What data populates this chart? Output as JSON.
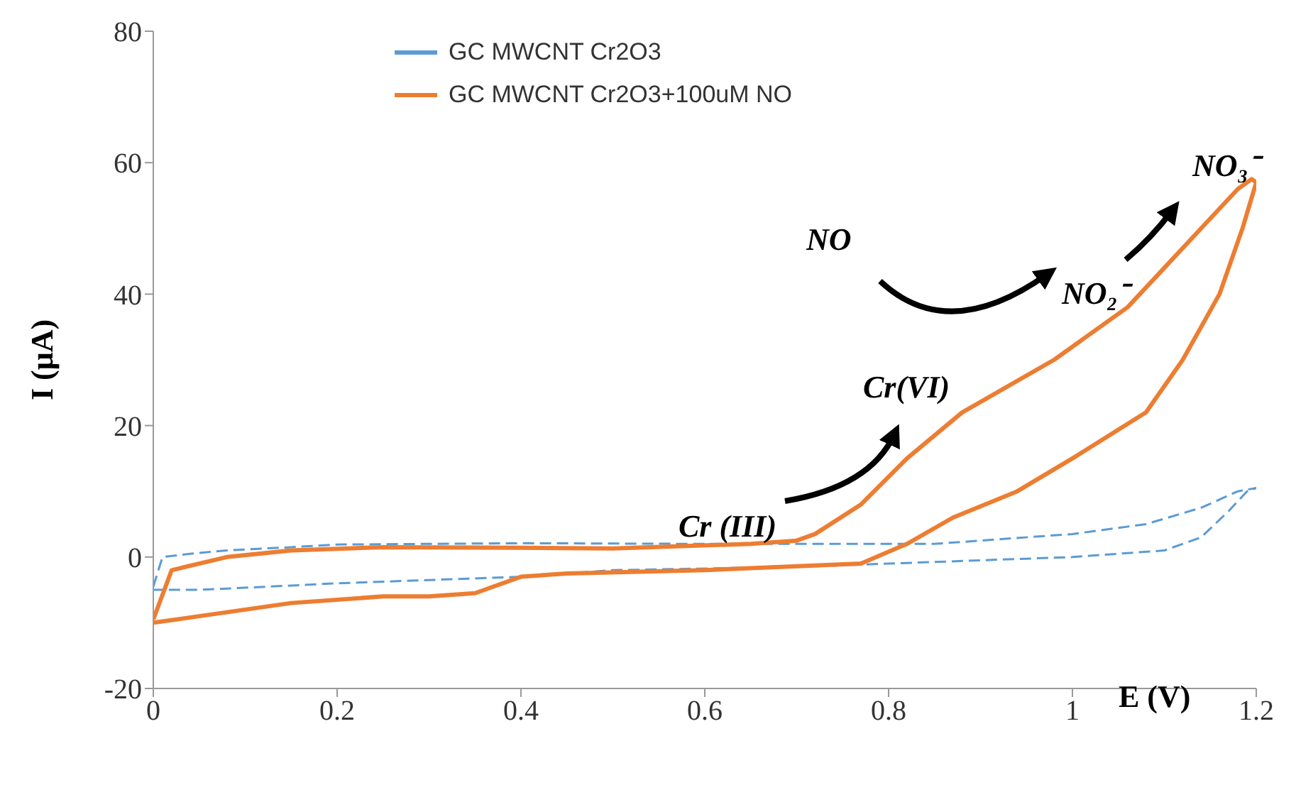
{
  "chart_data": {
    "type": "line",
    "xlabel": "E (V)",
    "ylabel": "I (μA)",
    "xlim": [
      0,
      1.2
    ],
    "xticks": [
      0,
      0.2,
      0.4,
      0.6,
      0.8,
      1,
      1.2
    ],
    "ylim": [
      -20,
      80
    ],
    "yticks": [
      -20,
      0,
      20,
      40,
      60,
      80
    ],
    "grid": false,
    "legend": "top left",
    "marker": "none",
    "series": [
      {
        "name": "GC MWCNT Cr2O3",
        "color": "#5b9bd5",
        "line_style": "dashed",
        "x": [
          0,
          0.01,
          0.04,
          0.08,
          0.15,
          0.2,
          0.4,
          0.6,
          0.7,
          0.85,
          1.0,
          1.08,
          1.14,
          1.18,
          1.2,
          1.19,
          1.17,
          1.14,
          1.1,
          1.0,
          0.9,
          0.7,
          0.5,
          0.4,
          0.3,
          0.2,
          0.05,
          0
        ],
        "values": [
          -4.5,
          0,
          0.5,
          1,
          1.5,
          1.9,
          2.1,
          2,
          2,
          2,
          3.5,
          5,
          7.5,
          10,
          10.5,
          10,
          7,
          3,
          1,
          0,
          -0.5,
          -1.5,
          -2,
          -3,
          -3.5,
          -4,
          -5,
          -5
        ]
      },
      {
        "name": "GC MWCNT Cr2O3+100uM NO",
        "color": "#ed7d31",
        "line_style": "solid",
        "x": [
          0,
          0.02,
          0.08,
          0.15,
          0.25,
          0.4,
          0.5,
          0.65,
          0.7,
          0.72,
          0.77,
          0.82,
          0.88,
          0.98,
          1.06,
          1.1,
          1.14,
          1.18,
          1.195,
          1.2,
          1.185,
          1.16,
          1.12,
          1.08,
          1.0,
          0.94,
          0.87,
          0.82,
          0.77,
          0.6,
          0.45,
          0.4,
          0.35,
          0.3,
          0.25,
          0.15,
          0.05,
          0
        ],
        "values": [
          -9.5,
          -2,
          0,
          1,
          1.5,
          1.4,
          1.3,
          2,
          2.5,
          3.5,
          8,
          15,
          22,
          30,
          38,
          44,
          50,
          56,
          57.5,
          57,
          50,
          40,
          30,
          22,
          15,
          10,
          6,
          2,
          -1,
          -2,
          -2.5,
          -3,
          -5.5,
          -6,
          -6,
          -7,
          -9,
          -10
        ]
      }
    ],
    "annotations": [
      "NO",
      "Cr(VI)",
      "Cr (III)",
      "NO₂⁻",
      "NO₃⁻"
    ]
  }
}
